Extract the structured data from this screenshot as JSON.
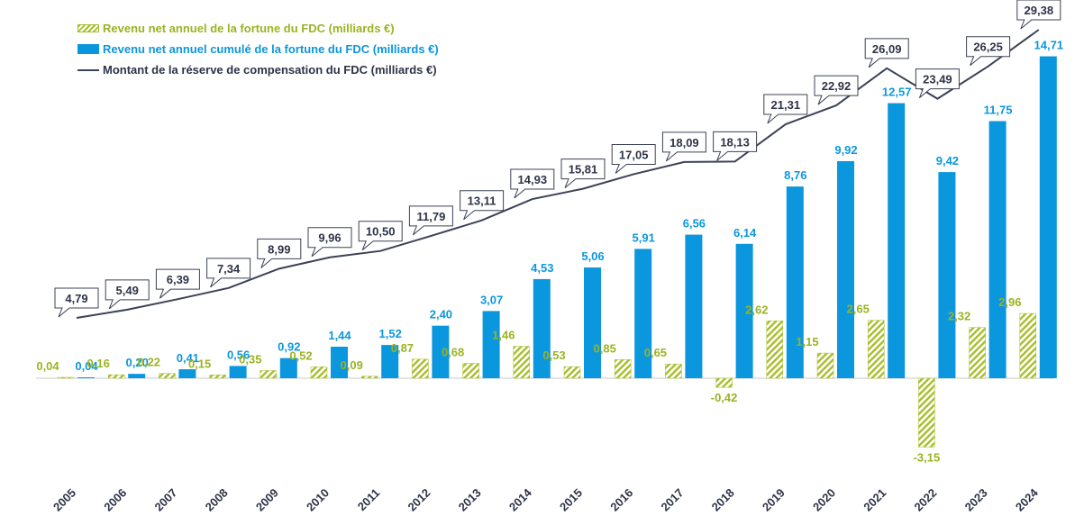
{
  "legend": {
    "annual": "Revenu net annuel de la fortune du FDC (milliards €)",
    "cumulative": "Revenu net annuel cumulé de la fortune du FDC (milliards €)",
    "reserve": "Montant de la réserve de compensation du FDC (milliards €)"
  },
  "colors": {
    "annual": "#a8bd2b",
    "cumulative": "#0b97dd",
    "reserve": "#3c4257"
  },
  "chart_data": {
    "type": "bar",
    "categories": [
      "2005",
      "2006",
      "2007",
      "2008",
      "2009",
      "2010",
      "2011",
      "2012",
      "2013",
      "2014",
      "2015",
      "2016",
      "2017",
      "2018",
      "2019",
      "2020",
      "2021",
      "2022",
      "2023",
      "2024"
    ],
    "series": [
      {
        "name": "Revenu net annuel de la fortune du FDC (milliards €)",
        "style": "hatched-bar",
        "values": [
          0.04,
          0.16,
          0.22,
          0.15,
          0.35,
          0.52,
          0.09,
          0.87,
          0.68,
          1.46,
          0.53,
          0.85,
          0.65,
          -0.42,
          2.62,
          1.15,
          2.65,
          -3.15,
          2.32,
          2.96
        ],
        "labels": [
          "0,04",
          "0,16",
          "0,22",
          "0,15",
          "0,35",
          "0,52",
          "0,09",
          "0,87",
          "0,68",
          "1,46",
          "0,53",
          "0,85",
          "0,65",
          "-0,42",
          "2,62",
          "1,15",
          "2,65",
          "-3,15",
          "2,32",
          "2,96"
        ]
      },
      {
        "name": "Revenu net annuel cumulé de la fortune du FDC (milliards €)",
        "style": "bar",
        "values": [
          0.04,
          0.2,
          0.41,
          0.56,
          0.92,
          1.44,
          1.52,
          2.4,
          3.07,
          4.53,
          5.06,
          5.91,
          6.56,
          6.14,
          8.76,
          9.92,
          12.57,
          9.42,
          11.75,
          14.71
        ],
        "labels": [
          "0,04",
          "0,20",
          "0,41",
          "0,56",
          "0,92",
          "1,44",
          "1,52",
          "2,40",
          "3,07",
          "4,53",
          "5,06",
          "5,91",
          "6,56",
          "6,14",
          "8,76",
          "9,92",
          "12,57",
          "9,42",
          "11,75",
          "14,71"
        ]
      },
      {
        "name": "Montant de la réserve de compensation du FDC (milliards €)",
        "style": "line",
        "values": [
          4.79,
          5.49,
          6.39,
          7.34,
          8.99,
          9.96,
          10.5,
          11.79,
          13.11,
          14.93,
          15.81,
          17.05,
          18.09,
          18.13,
          21.31,
          22.92,
          26.09,
          23.49,
          26.25,
          29.38
        ],
        "labels": [
          "4,79",
          "5,49",
          "6,39",
          "7,34",
          "8,99",
          "9,96",
          "10,50",
          "11,79",
          "13,11",
          "14,93",
          "15,81",
          "17,05",
          "18,09",
          "18,13",
          "21,31",
          "22,92",
          "26,09",
          "23,49",
          "26,25",
          "29,38"
        ]
      }
    ],
    "legend": "top-left",
    "grid": false
  }
}
